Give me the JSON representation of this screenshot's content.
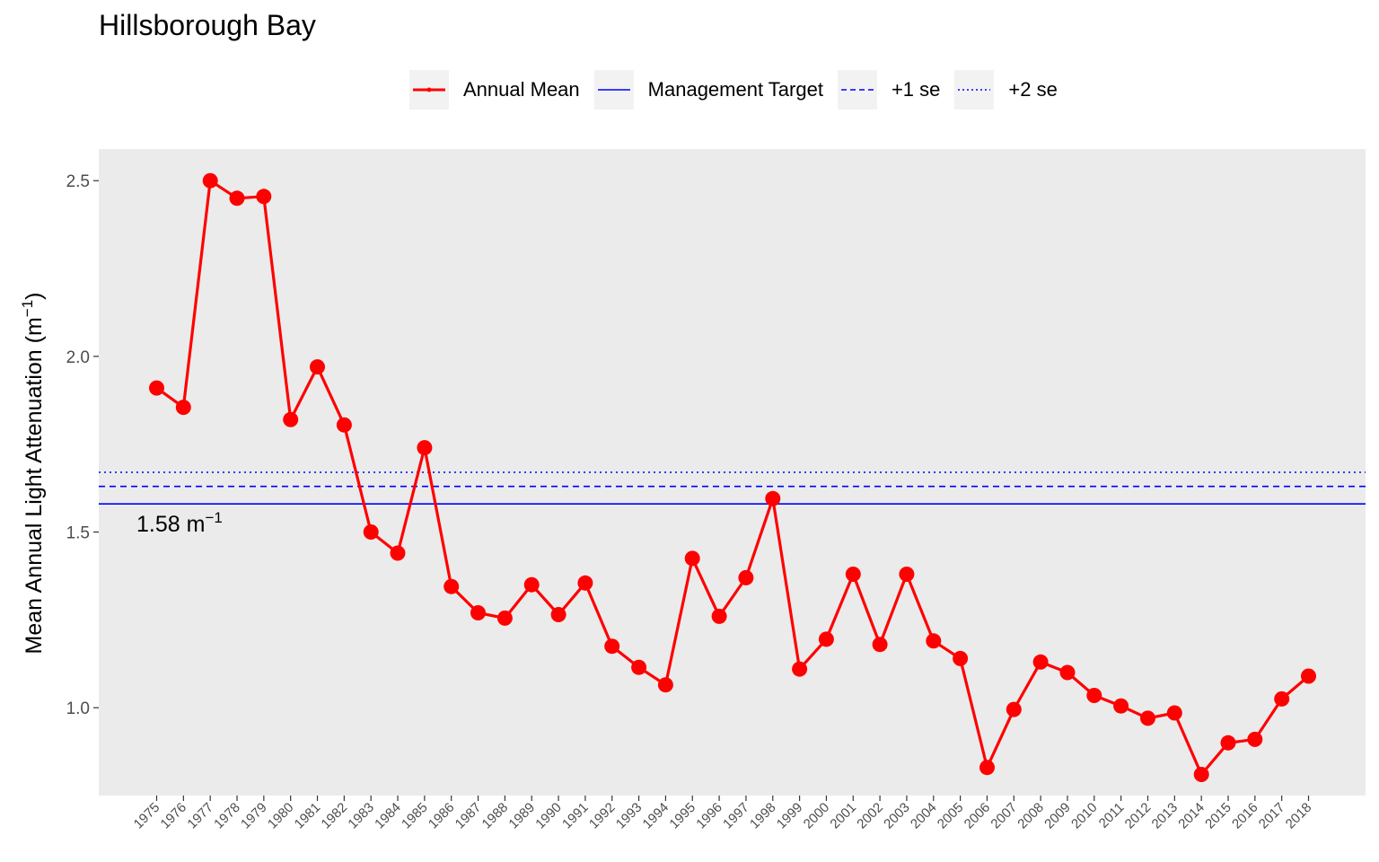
{
  "chart_data": {
    "type": "line",
    "title": "Hillsborough Bay",
    "ylabel": "Mean Annual Light Attenuation (m",
    "ylabel_sup": "−1",
    "xlabel": "",
    "ylim": [
      0.75,
      2.59
    ],
    "yticks": [
      1.0,
      1.5,
      2.0,
      2.5
    ],
    "ytick_labels": [
      "1.0",
      "1.5",
      "2.0",
      "2.5"
    ],
    "grid": false,
    "legend_position": "top",
    "x": [
      "1975",
      "1976",
      "1977",
      "1978",
      "1979",
      "1980",
      "1981",
      "1982",
      "1983",
      "1984",
      "1985",
      "1986",
      "1987",
      "1988",
      "1989",
      "1990",
      "1991",
      "1992",
      "1993",
      "1994",
      "1995",
      "1996",
      "1997",
      "1998",
      "1999",
      "2000",
      "2001",
      "2002",
      "2003",
      "2004",
      "2005",
      "2006",
      "2007",
      "2008",
      "2009",
      "2010",
      "2011",
      "2012",
      "2013",
      "2014",
      "2015",
      "2016",
      "2017",
      "2018"
    ],
    "series": [
      {
        "name": "Annual Mean",
        "color": "#ff0000",
        "values": [
          1.91,
          1.855,
          2.5,
          2.45,
          2.455,
          1.82,
          1.97,
          1.805,
          1.5,
          1.44,
          1.74,
          1.345,
          1.27,
          1.255,
          1.35,
          1.265,
          1.355,
          1.175,
          1.115,
          1.065,
          1.425,
          1.26,
          1.37,
          1.595,
          1.11,
          1.195,
          1.38,
          1.18,
          1.38,
          1.19,
          1.14,
          0.83,
          0.995,
          1.13,
          1.1,
          1.035,
          1.005,
          0.97,
          0.985,
          0.81,
          0.9,
          0.91,
          1.025,
          1.09
        ]
      }
    ],
    "reference_lines": [
      {
        "name": "Management Target",
        "value": 1.58,
        "color": "#0000ff",
        "style": "solid"
      },
      {
        "name": "+1 se",
        "value": 1.63,
        "color": "#0000ff",
        "style": "dashed"
      },
      {
        "name": "+2 se",
        "value": 1.67,
        "color": "#0000ff",
        "style": "dotted"
      }
    ],
    "annotation": {
      "text": "1.58 m",
      "sup": "−1",
      "value": 1.58
    }
  }
}
